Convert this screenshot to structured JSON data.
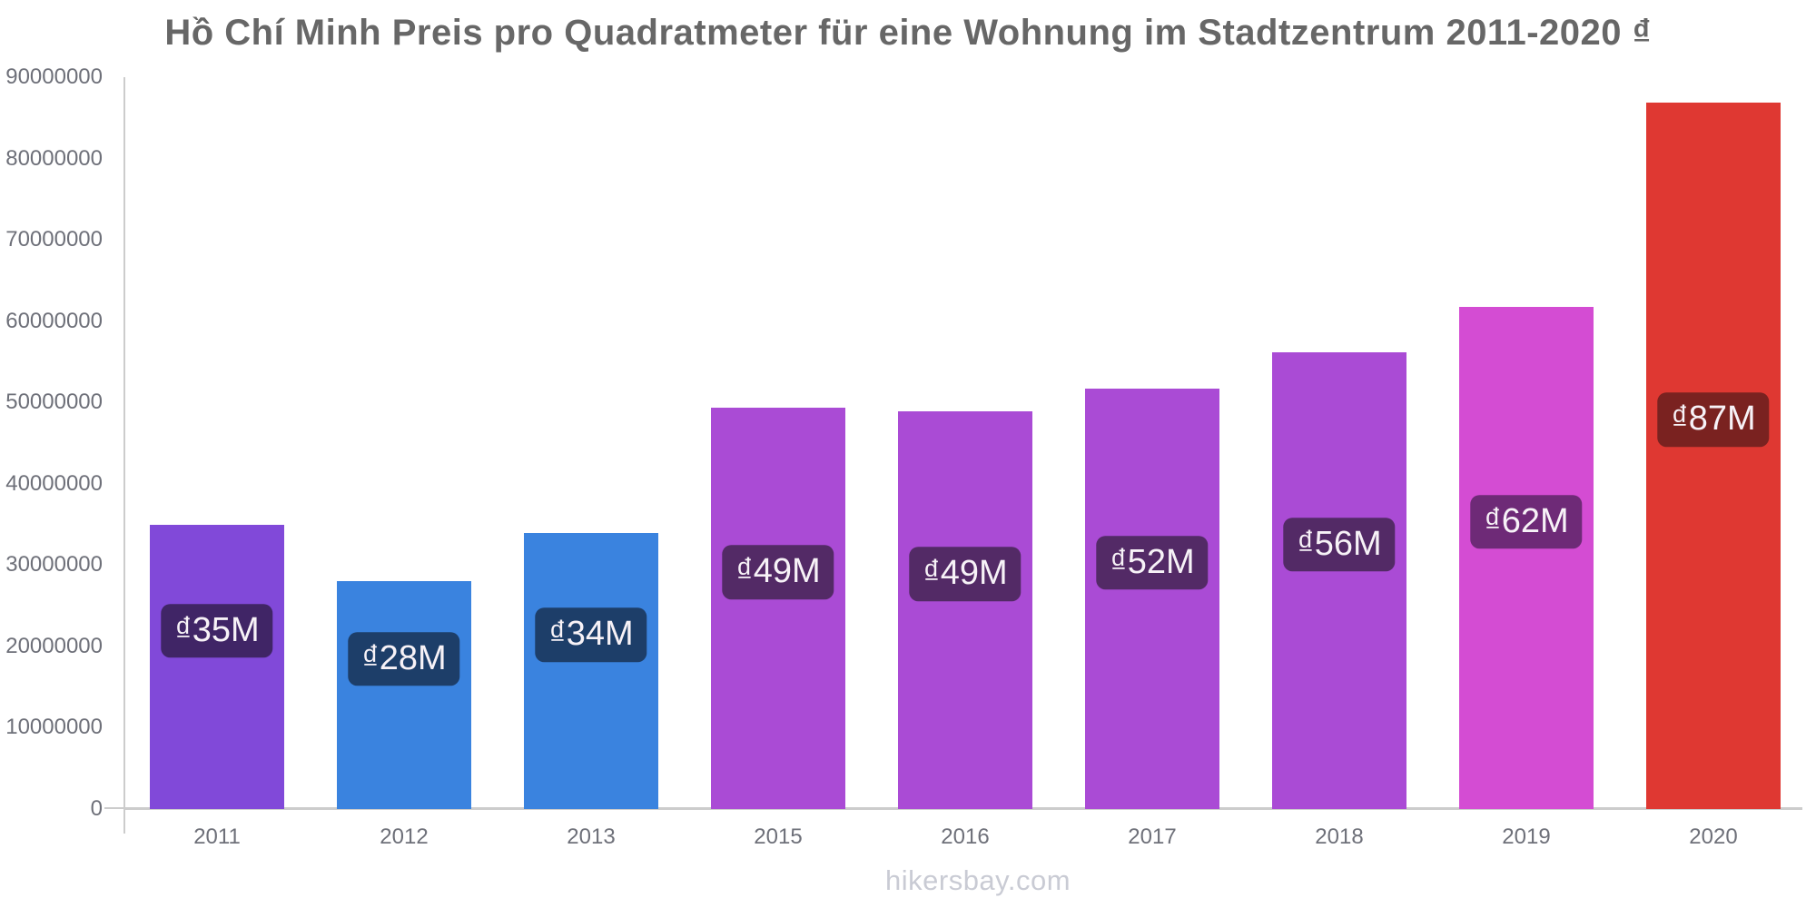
{
  "footer": "hikersbay.com",
  "colors": {
    "title_text": "#676767",
    "axis_line": "#cccccc",
    "tick_text": "#6e7079",
    "bar_label_text": "#f7f2f7",
    "watermark_text": "#c9cbd4"
  },
  "chart_data": {
    "type": "bar",
    "title": "Hồ Chí Minh Preis pro Quadratmeter für eine Wohnung im Stadtzentrum 2011-2020 ₫",
    "xlabel": "",
    "ylabel": "",
    "categories": [
      "2011",
      "2012",
      "2013",
      "2015",
      "2016",
      "2017",
      "2018",
      "2019",
      "2020"
    ],
    "values": [
      34900000,
      28000000,
      34000000,
      49300000,
      48900000,
      51700000,
      56200000,
      61700000,
      86900000
    ],
    "bar_labels": [
      "₫35M",
      "₫28M",
      "₫34M",
      "₫49M",
      "₫49M",
      "₫52M",
      "₫56M",
      "₫62M",
      "₫87M"
    ],
    "bar_colors": [
      "#8149d9",
      "#3a83df",
      "#3a83df",
      "#aa4bd5",
      "#aa4bd5",
      "#aa4bd5",
      "#aa4bd5",
      "#d44cd3",
      "#df3832"
    ],
    "label_box_colors": [
      "#402566",
      "#1d3e69",
      "#1d3e69",
      "#532a66",
      "#532a66",
      "#532a66",
      "#532a66",
      "#6e2a77",
      "#7a2220"
    ],
    "ylim": [
      0,
      90000000
    ],
    "y_ticks": [
      0,
      10000000,
      20000000,
      30000000,
      40000000,
      50000000,
      60000000,
      70000000,
      80000000,
      90000000
    ],
    "grid": false,
    "legend": false,
    "watermark": "hikersbay.com"
  }
}
